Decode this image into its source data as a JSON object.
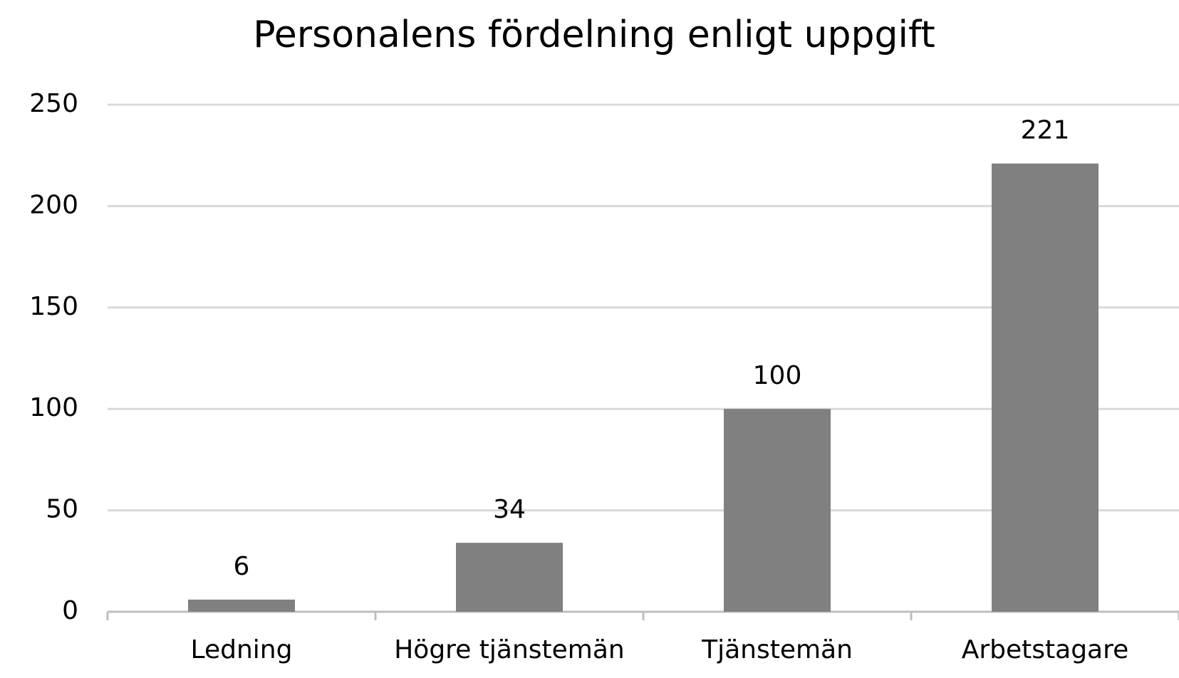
{
  "chart_data": {
    "type": "bar",
    "title": "Personalens fördelning enligt uppgift",
    "categories": [
      "Ledning",
      "Högre tjänstemän",
      "Tjänstemän",
      "Arbetstagare"
    ],
    "values": [
      6,
      34,
      100,
      221
    ],
    "color": "#808080",
    "ylim": [
      0,
      250
    ],
    "yticks": [
      0,
      50,
      100,
      150,
      200,
      250
    ],
    "grid": true,
    "data_labels": true
  }
}
